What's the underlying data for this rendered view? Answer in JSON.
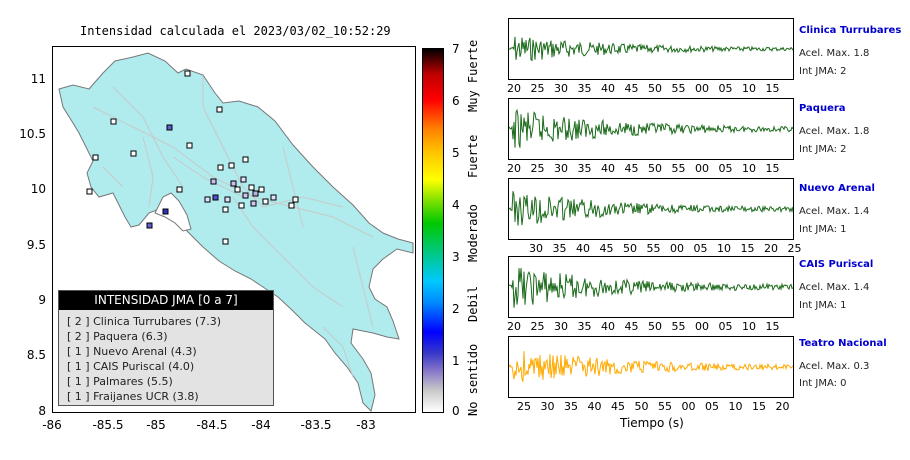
{
  "map_title": "Intensidad calculada el 2023/03/02_10:52:29",
  "chart_data": [
    {
      "type": "map",
      "title": "Intensidad calculada el 2023/03/02_10:52:29",
      "x_ticks": [
        "-86",
        "-85.5",
        "-85",
        "-84.5",
        "-84",
        "-83.5",
        "-83"
      ],
      "y_ticks": [
        "11",
        "10.5",
        "10",
        "9.5",
        "9",
        "8.5",
        "8"
      ],
      "xlim": [
        -86,
        -82.55
      ],
      "ylim": [
        8,
        11.3
      ],
      "colors": {
        "land": "#b0ecee",
        "border": "#777777",
        "road": "#c0c0c0"
      }
    },
    {
      "type": "colorbar",
      "ticks": [
        "0",
        "1",
        "2",
        "3",
        "4",
        "5",
        "6",
        "7"
      ],
      "range": [
        0,
        7
      ],
      "labels": [
        "No sentido",
        "Debil",
        "Moderado",
        "Fuerte",
        "Muy Fuerte"
      ]
    },
    {
      "type": "line",
      "xlabel": "Tiempo (s)",
      "series": [
        {
          "name": "Clinica Turrubares",
          "acel": "Acel. Max. 1.8",
          "int": "Int JMA: 2",
          "color": "#1a6a1a",
          "ticks": [
            "20",
            "25",
            "30",
            "35",
            "40",
            "45",
            "50",
            "55",
            "00",
            "05",
            "10",
            "15"
          ],
          "amp": 0.6
        },
        {
          "name": "Paquera",
          "acel": "Acel. Max. 1.8",
          "int": "Int JMA: 2",
          "color": "#1a6a1a",
          "ticks": [
            "20",
            "25",
            "30",
            "35",
            "40",
            "45",
            "50",
            "55",
            "00",
            "05",
            "10",
            "15"
          ],
          "amp": 0.85
        },
        {
          "name": "Nuevo Arenal",
          "acel": "Acel. Max. 1.4",
          "int": "Int JMA: 1",
          "color": "#1a6a1a",
          "ticks": [
            "30",
            "35",
            "40",
            "45",
            "50",
            "55",
            "00",
            "05",
            "10",
            "15",
            "20",
            "25"
          ],
          "amp": 0.8
        },
        {
          "name": "CAIS Puriscal",
          "acel": "Acel. Max. 1.4",
          "int": "Int JMA: 1",
          "color": "#1a6a1a",
          "ticks": [
            "20",
            "25",
            "30",
            "35",
            "40",
            "45",
            "50",
            "55",
            "00",
            "05",
            "10",
            "15"
          ],
          "amp": 0.9
        },
        {
          "name": "Teatro Nacional",
          "acel": "Acel. Max. 0.3",
          "int": "Int JMA: 0",
          "color": "#ffaa00",
          "ticks": [
            "25",
            "30",
            "35",
            "40",
            "45",
            "50",
            "55",
            "00",
            "05",
            "10",
            "15",
            "20"
          ],
          "amp": 0.85
        }
      ]
    }
  ],
  "legend": {
    "title": "INTENSIDAD JMA [0 a 7]",
    "items": [
      "[ 2 ]  Clinica Turrubares (7.3)",
      "[ 2 ]  Paquera (6.3)",
      "[ 1 ]  Nuevo Arenal (4.3)",
      "[ 1 ]  CAIS Puriscal (4.0)",
      "[ 1 ]  Palmares (5.5)",
      "[ 1 ]  Fraijanes UCR (3.8)"
    ]
  },
  "time_label": "Tiempo (s)"
}
